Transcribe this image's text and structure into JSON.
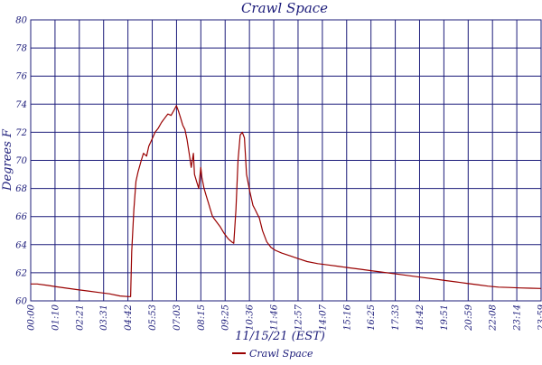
{
  "chart_data": {
    "type": "line",
    "title": "Crawl Space",
    "xlabel": "11/15/21 (EST)",
    "ylabel": "Degrees F",
    "ylim": [
      60,
      80
    ],
    "y_ticks": [
      60,
      62,
      64,
      66,
      68,
      70,
      72,
      74,
      76,
      78,
      80
    ],
    "x_range_hours": [
      0,
      24
    ],
    "x_tick_labels": [
      "00:00",
      "01:10",
      "02:21",
      "03:31",
      "04:42",
      "05:53",
      "07:03",
      "08:15",
      "09:25",
      "10:36",
      "11:46",
      "12:57",
      "14:07",
      "15:16",
      "16:25",
      "17:33",
      "18:42",
      "19:51",
      "20:59",
      "22:08",
      "23:14",
      "23:59"
    ],
    "grid": true,
    "legend_position": "bottom",
    "colors": {
      "series": "#990000",
      "grid": "#1c1c7a",
      "text": "#1c1c7a"
    },
    "series": [
      {
        "name": "Crawl Space",
        "x": [
          0.0,
          0.3,
          0.8,
          1.2,
          1.7,
          2.2,
          2.7,
          3.2,
          3.7,
          4.2,
          4.6,
          4.7,
          4.75,
          4.85,
          4.95,
          5.05,
          5.2,
          5.3,
          5.45,
          5.55,
          5.7,
          5.85,
          6.0,
          6.15,
          6.3,
          6.45,
          6.6,
          6.75,
          6.85,
          6.95,
          7.05,
          7.15,
          7.25,
          7.35,
          7.45,
          7.55,
          7.65,
          7.7,
          7.8,
          7.9,
          8.0,
          8.05,
          8.15,
          8.25,
          8.35,
          8.45,
          8.55,
          8.7,
          8.9,
          9.1,
          9.3,
          9.45,
          9.55,
          9.65,
          9.75,
          9.85,
          9.95,
          10.05,
          10.15,
          10.3,
          10.45,
          10.55,
          10.65,
          10.75,
          10.9,
          11.1,
          11.3,
          11.5,
          11.8,
          12.2,
          12.6,
          13.0,
          13.5,
          14.0,
          14.5,
          15.0,
          15.5,
          16.0,
          16.5,
          17.0,
          17.5,
          18.0,
          18.5,
          19.0,
          19.5,
          20.0,
          20.5,
          21.0,
          21.5,
          22.0,
          22.5,
          23.0,
          23.5,
          23.99
        ],
        "y": [
          61.2,
          61.2,
          61.1,
          61.0,
          60.9,
          60.8,
          60.7,
          60.6,
          60.5,
          60.35,
          60.3,
          60.3,
          63.5,
          66.5,
          68.5,
          69.2,
          70.0,
          70.5,
          70.3,
          71.0,
          71.5,
          72.0,
          72.3,
          72.7,
          73.0,
          73.3,
          73.2,
          73.6,
          73.9,
          73.5,
          73.0,
          72.5,
          72.2,
          71.5,
          70.5,
          69.5,
          70.5,
          69.0,
          68.5,
          68.0,
          69.5,
          68.8,
          68.0,
          67.5,
          67.0,
          66.5,
          66.0,
          65.7,
          65.3,
          64.8,
          64.4,
          64.2,
          64.1,
          66.5,
          70.0,
          71.8,
          72.0,
          71.6,
          69.0,
          67.8,
          66.8,
          66.5,
          66.2,
          65.9,
          65.0,
          64.2,
          63.8,
          63.6,
          63.4,
          63.2,
          63.0,
          62.8,
          62.65,
          62.55,
          62.45,
          62.35,
          62.25,
          62.15,
          62.05,
          61.95,
          61.85,
          61.75,
          61.65,
          61.55,
          61.45,
          61.35,
          61.25,
          61.15,
          61.05,
          60.98,
          60.95,
          60.92,
          60.9,
          60.88
        ]
      }
    ]
  }
}
